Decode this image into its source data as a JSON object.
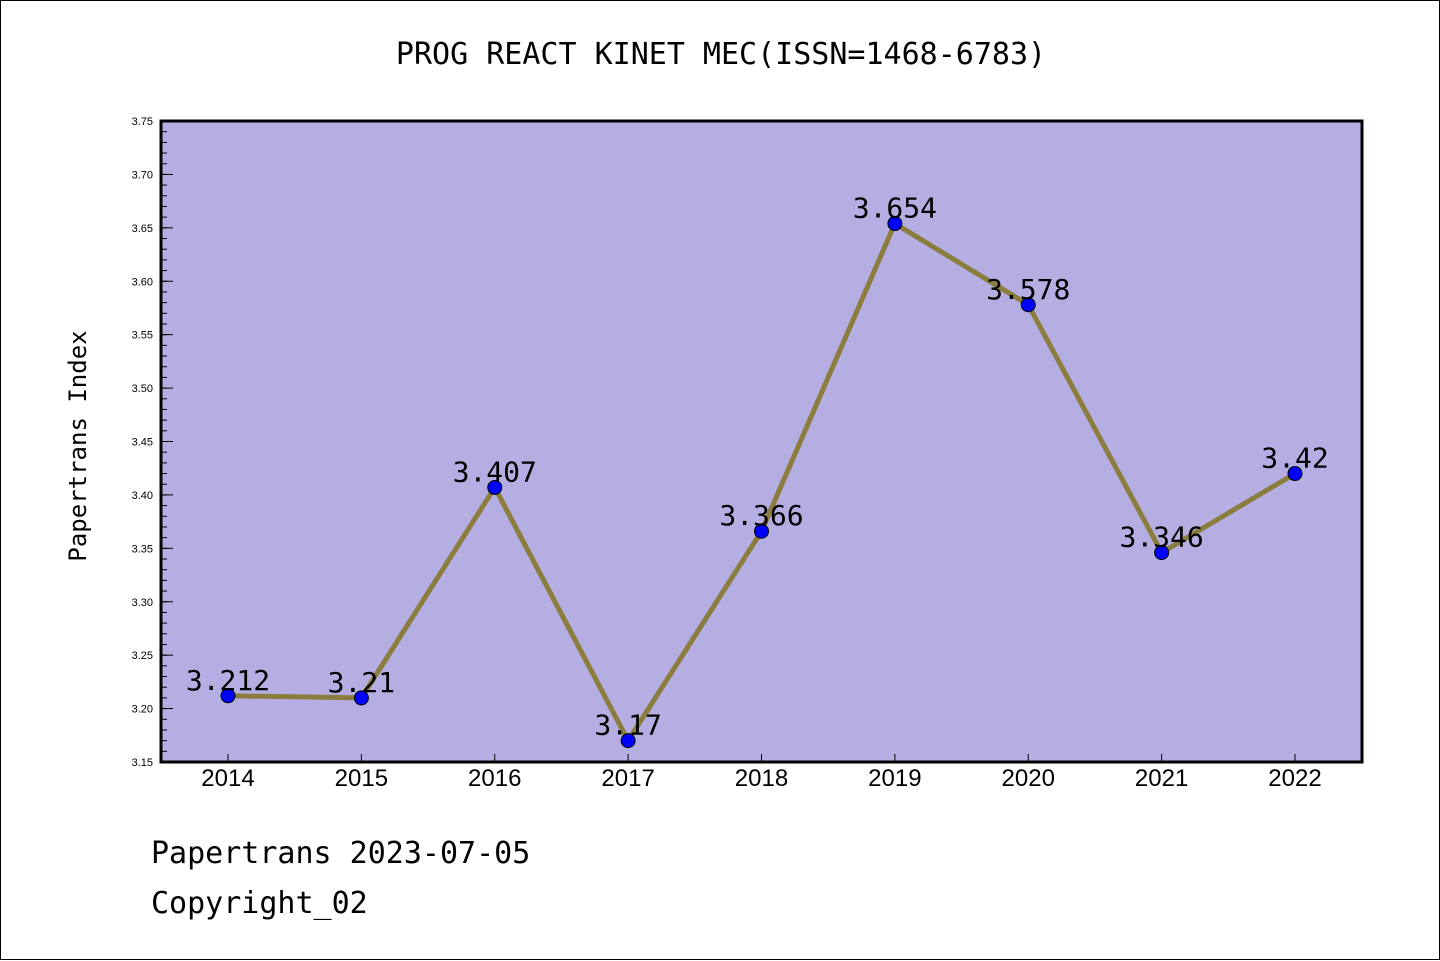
{
  "chart_data": {
    "type": "line",
    "title": "PROG REACT KINET MEC(ISSN=1468-6783)",
    "xlabel": "",
    "ylabel": "Papertrans Index",
    "categories": [
      "2014",
      "2015",
      "2016",
      "2017",
      "2018",
      "2019",
      "2020",
      "2021",
      "2022"
    ],
    "series": [
      {
        "values": [
          3.212,
          3.21,
          3.407,
          3.17,
          3.366,
          3.654,
          3.578,
          3.346,
          3.42
        ],
        "data_labels": [
          "3.212",
          "3.21",
          "3.407",
          "3.17",
          "3.366",
          "3.654",
          "3.578",
          "3.346",
          "3.42"
        ]
      }
    ],
    "ylim": [
      3.15,
      3.75
    ],
    "yticks": [
      "3.15",
      "3.20",
      "3.25",
      "3.30",
      "3.35",
      "3.40",
      "3.45",
      "3.50",
      "3.55",
      "3.60",
      "3.65",
      "3.70",
      "3.75"
    ],
    "grid": false,
    "legend": "none",
    "colors": {
      "plot_background": "#b5aee3",
      "line": "#8b7d3e",
      "marker": "#0000ff"
    }
  },
  "footer": {
    "date_line": "Papertrans 2023-07-05",
    "copyright": "Copyright_02"
  }
}
